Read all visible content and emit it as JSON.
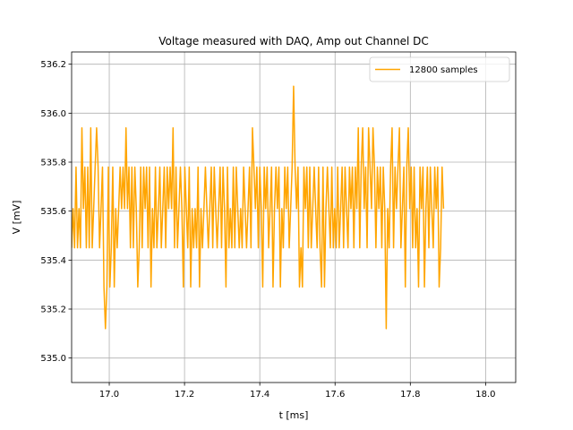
{
  "chart_data": {
    "type": "line",
    "title": "Voltage measured with DAQ, Amp out Channel DC",
    "xlabel": "t  [ms]",
    "ylabel": "V  [mV]",
    "xlim": [
      16.9,
      18.08
    ],
    "ylim": [
      534.9,
      536.25
    ],
    "xticks": [
      17.0,
      17.2,
      17.4,
      17.6,
      17.8,
      18.0
    ],
    "xtick_labels": [
      "17.0",
      "17.2",
      "17.4",
      "17.6",
      "17.8",
      "18.0"
    ],
    "yticks": [
      535.0,
      535.2,
      535.4,
      535.6,
      535.8,
      536.0,
      536.2
    ],
    "ytick_labels": [
      "535.0",
      "535.2",
      "535.4",
      "535.6",
      "535.8",
      "536.0",
      "536.2"
    ],
    "grid": true,
    "legend_position": "top-right",
    "series": [
      {
        "name": "12800 samples",
        "color": "#ffa500",
        "x_start": 16.9,
        "x_step": 0.00390625,
        "levels": [
          535.12,
          535.29,
          535.45,
          535.61,
          535.78,
          535.94,
          536.11
        ],
        "level_index": [
          2,
          3,
          2,
          4,
          2,
          3,
          2,
          5,
          3,
          4,
          2,
          4,
          2,
          5,
          2,
          3,
          4,
          5,
          4,
          2,
          3,
          4,
          1,
          0,
          1,
          4,
          1,
          2,
          4,
          1,
          3,
          2,
          3,
          4,
          3,
          4,
          3,
          5,
          3,
          4,
          2,
          4,
          2,
          4,
          3,
          1,
          2,
          4,
          2,
          4,
          3,
          4,
          2,
          4,
          1,
          3,
          2,
          4,
          2,
          3,
          4,
          2,
          3,
          4,
          2,
          4,
          3,
          4,
          3,
          5,
          2,
          4,
          2,
          3,
          4,
          3,
          1,
          4,
          3,
          2,
          4,
          1,
          3,
          2,
          3,
          2,
          4,
          1,
          3,
          2,
          3,
          4,
          3,
          2,
          3,
          4,
          2,
          4,
          3,
          2,
          3,
          4,
          2,
          4,
          3,
          1,
          4,
          2,
          3,
          2,
          4,
          2,
          4,
          3,
          2,
          3,
          2,
          4,
          3,
          2,
          3,
          4,
          2,
          5,
          4,
          3,
          4,
          2,
          4,
          3,
          1,
          4,
          3,
          4,
          2,
          3,
          4,
          1,
          3,
          4,
          3,
          4,
          1,
          3,
          2,
          4,
          3,
          4,
          2,
          3,
          4,
          6,
          4,
          3,
          4,
          1,
          2,
          1,
          4,
          3,
          4,
          2,
          4,
          2,
          3,
          4,
          3,
          2,
          4,
          2,
          1,
          4,
          1,
          3,
          4,
          3,
          2,
          4,
          2,
          3,
          2,
          4,
          2,
          3,
          4,
          2,
          4,
          3,
          2,
          4,
          3,
          4,
          2,
          4,
          3,
          5,
          2,
          4,
          5,
          3,
          4,
          2,
          5,
          4,
          3,
          5,
          4,
          2,
          4,
          3,
          4,
          2,
          4,
          3,
          0,
          3,
          2,
          4,
          5,
          2,
          4,
          3,
          4,
          5,
          2,
          3,
          4,
          1,
          4,
          5,
          3,
          4,
          2,
          4,
          2,
          3,
          1,
          4,
          3,
          4,
          1,
          3,
          4,
          2,
          4,
          3,
          2,
          4,
          3,
          4,
          1,
          2,
          4,
          3
        ]
      }
    ]
  }
}
